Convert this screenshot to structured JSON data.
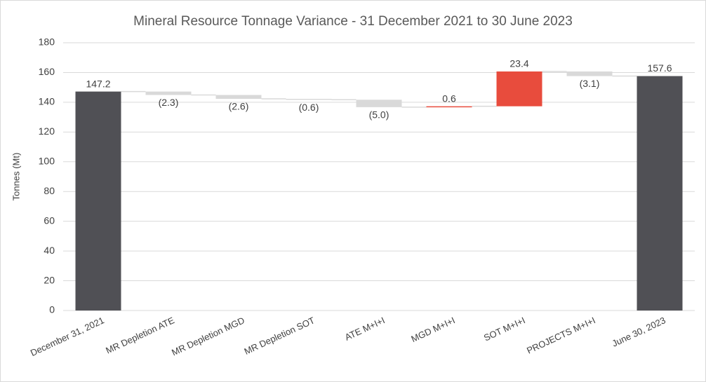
{
  "chart_data": {
    "type": "waterfall",
    "title": "Mineral Resource Tonnage Variance - 31 December 2021 to 30 June 2023",
    "y_label": "Tonnes (Mt)",
    "categories": [
      "December 31, 2021",
      "MR Depletion ATE",
      "MR Depletion MGD",
      "MR Depletion SOT",
      "ATE M+I+I",
      "MGD M+I+I",
      "SOT M+I+I",
      "PROJECTS M+I+I",
      "June 30, 2023"
    ],
    "measures": [
      "total",
      "relative",
      "relative",
      "relative",
      "relative",
      "relative",
      "relative",
      "relative",
      "total"
    ],
    "values": [
      147.2,
      -2.3,
      -2.6,
      -0.6,
      -5.0,
      0.6,
      23.4,
      -3.1,
      157.6
    ],
    "value_labels": [
      "147.2",
      "(2.3)",
      "(2.6)",
      "(0.6)",
      "(5.0)",
      "0.6",
      "23.4",
      "(3.1)",
      "157.6"
    ],
    "total_color": "#505055",
    "increase_color": "#e84c3d",
    "decrease_color": "#d9d9d9",
    "ylim": [
      0,
      180
    ],
    "yticks": [
      0,
      20,
      40,
      60,
      80,
      100,
      120,
      140,
      160,
      180
    ],
    "grid": true
  }
}
